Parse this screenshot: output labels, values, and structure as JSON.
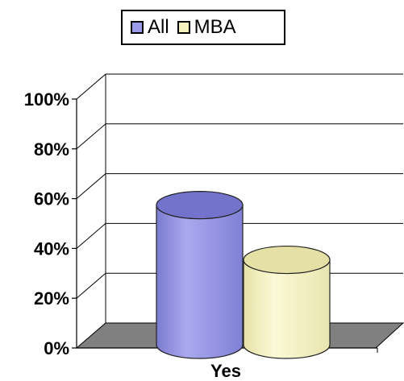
{
  "chart_data": {
    "type": "bar",
    "categories": [
      "Yes"
    ],
    "series": [
      {
        "name": "All",
        "values": [
          0.6
        ]
      },
      {
        "name": "MBA",
        "values": [
          0.38
        ]
      }
    ],
    "ylim": [
      0,
      1
    ],
    "y_ticks": [
      0,
      0.2,
      0.4,
      0.6,
      0.8,
      1.0
    ],
    "y_tick_labels": [
      "0%",
      "20%",
      "40%",
      "60%",
      "80%",
      "100%"
    ],
    "grid": true,
    "legend": "top",
    "style": "3d-cylinder",
    "colors": {
      "All": "#9a9ae6",
      "MBA": "#f5f2c0",
      "floor": "#808080"
    }
  },
  "legend": {
    "items": [
      {
        "label": "All",
        "color": "#9a9ae6"
      },
      {
        "label": "MBA",
        "color": "#f5f2c0"
      }
    ]
  }
}
